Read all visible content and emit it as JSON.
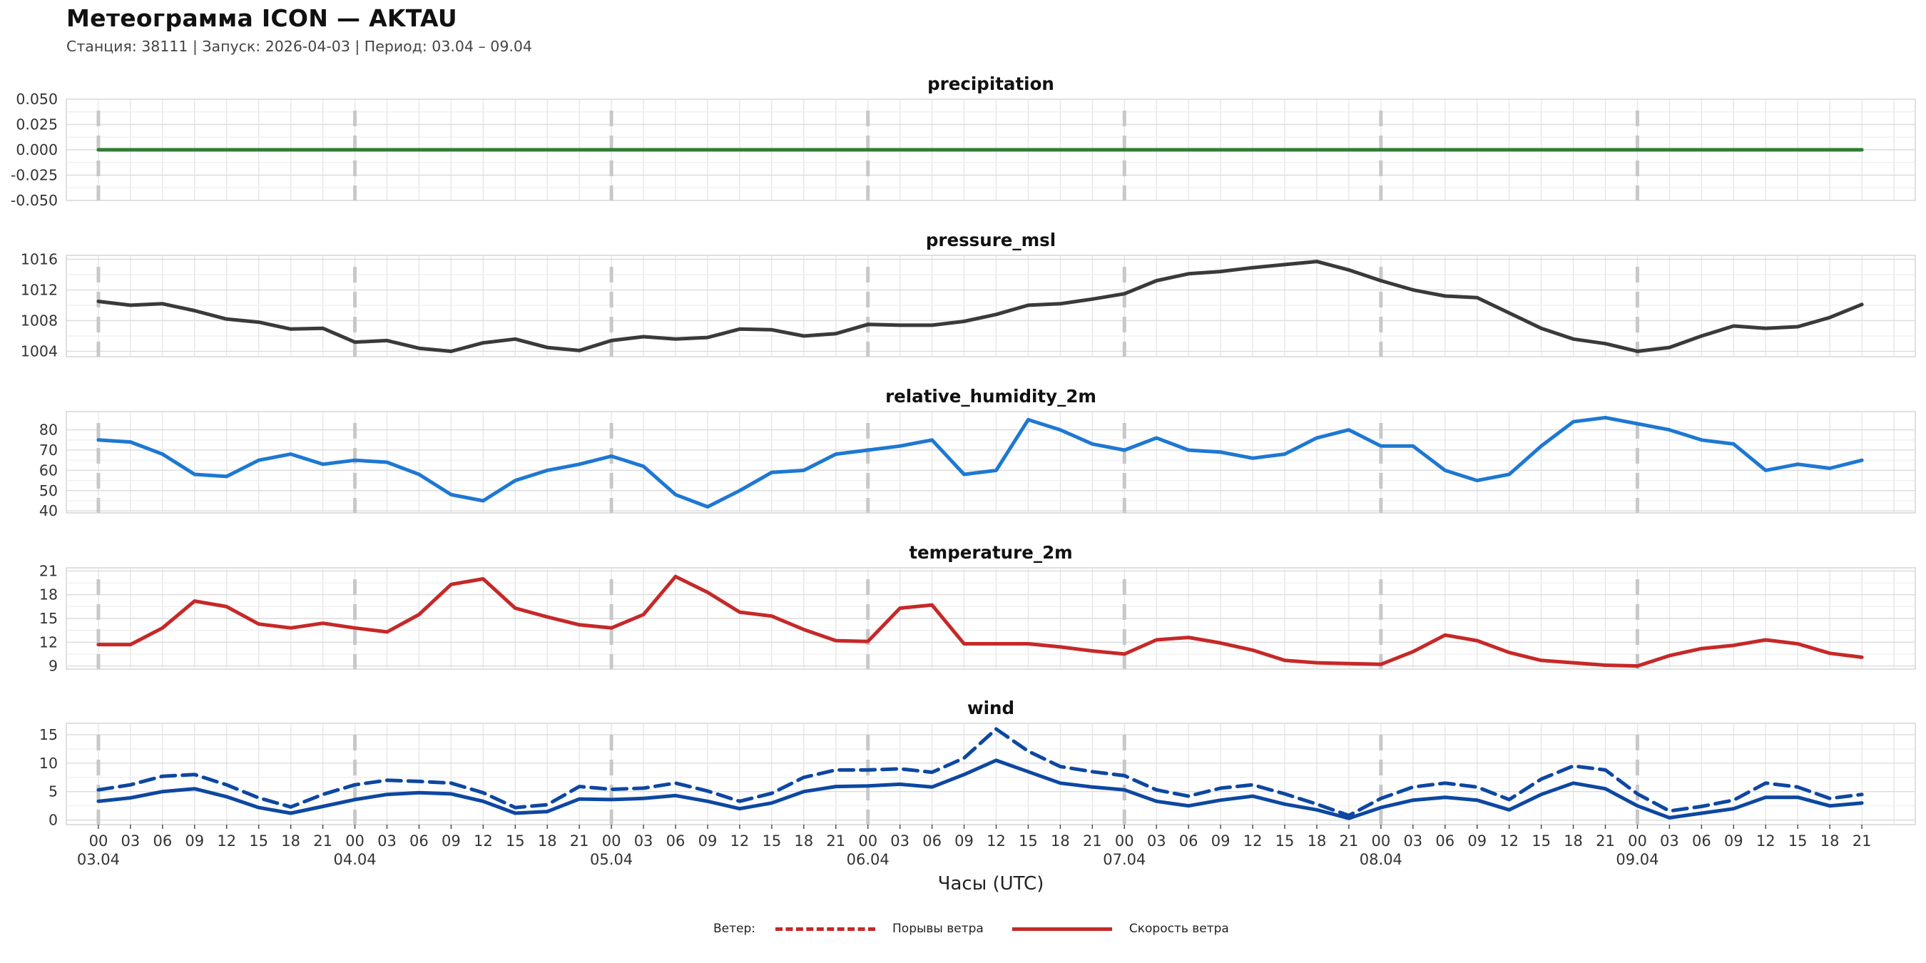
{
  "title": "Метеограмма ICON — AKTAU",
  "subtitle": "Станция: 38111  | Запуск: 2026-04-03  | Период: 03.04 – 09.04",
  "xlabel": "Часы (UTC)",
  "legend": {
    "title": "Ветер:",
    "gust": "Порывы ветра",
    "speed": "Скорость ветра",
    "color": "#c62828"
  },
  "chart_data": {
    "type": "line",
    "x_step_hours": 3,
    "x_range_hours": [
      -3,
      170
    ],
    "hour_ticks": [
      "00",
      "03",
      "06",
      "09",
      "12",
      "15",
      "18",
      "21",
      "00",
      "03",
      "06",
      "09",
      "12",
      "15",
      "18",
      "21",
      "00",
      "03",
      "06",
      "09",
      "12",
      "15",
      "18",
      "21",
      "00",
      "03",
      "06",
      "09",
      "12",
      "15",
      "18",
      "21",
      "00",
      "03",
      "06",
      "09",
      "12",
      "15",
      "18",
      "21",
      "00",
      "03",
      "06",
      "09",
      "12",
      "15",
      "18",
      "21",
      "00",
      "03",
      "06",
      "09",
      "12",
      "15",
      "18",
      "21"
    ],
    "dates": [
      "03.04",
      "04.04",
      "05.04",
      "06.04",
      "07.04",
      "08.04",
      "09.04"
    ],
    "panels": [
      {
        "title": "precipitation",
        "color": "#2e7d32",
        "ylim": [
          -0.05,
          0.05
        ],
        "yticks": [
          "0.050",
          "0.025",
          "0.000",
          "-0.025",
          "-0.050"
        ],
        "series": [
          {
            "name": "precipitation",
            "style": "solid",
            "values": [
              0,
              0,
              0,
              0,
              0,
              0,
              0,
              0,
              0,
              0,
              0,
              0,
              0,
              0,
              0,
              0,
              0,
              0,
              0,
              0,
              0,
              0,
              0,
              0,
              0,
              0,
              0,
              0,
              0,
              0,
              0,
              0,
              0,
              0,
              0,
              0,
              0,
              0,
              0,
              0,
              0,
              0,
              0,
              0,
              0,
              0,
              0,
              0,
              0,
              0,
              0,
              0,
              0,
              0,
              0,
              0
            ]
          }
        ]
      },
      {
        "title": "pressure_msl",
        "color": "#3a3a3a",
        "ylim": [
          1003.3,
          1016.5
        ],
        "yticks": [
          "1016",
          "1012",
          "1008",
          "1004"
        ],
        "series": [
          {
            "name": "pressure_msl",
            "style": "solid",
            "values": [
              1010.5,
              1010.0,
              1010.2,
              1009.3,
              1008.2,
              1007.8,
              1006.9,
              1007.0,
              1005.2,
              1005.4,
              1004.4,
              1004.0,
              1005.1,
              1005.6,
              1004.5,
              1004.1,
              1005.4,
              1005.9,
              1005.6,
              1005.8,
              1006.9,
              1006.8,
              1006.0,
              1006.3,
              1007.5,
              1007.4,
              1007.4,
              1007.9,
              1008.8,
              1010.0,
              1010.2,
              1010.8,
              1011.5,
              1013.2,
              1014.1,
              1014.4,
              1014.9,
              1015.3,
              1015.7,
              1014.6,
              1013.2,
              1012.0,
              1011.2,
              1011.0,
              1009.0,
              1007.0,
              1005.6,
              1005.0,
              1004.0,
              1004.5,
              1006.0,
              1007.3,
              1007.0,
              1007.2,
              1008.4,
              1010.1
            ]
          }
        ]
      },
      {
        "title": "relative_humidity_2m",
        "color": "#1e78d2",
        "ylim": [
          39,
          89
        ],
        "yticks": [
          "80",
          "70",
          "60",
          "50",
          "40"
        ],
        "series": [
          {
            "name": "relative_humidity_2m",
            "style": "solid",
            "values": [
              75,
              74,
              68,
              58,
              57,
              65,
              68,
              63,
              65,
              64,
              58,
              48,
              45,
              55,
              60,
              63,
              67,
              62,
              48,
              42,
              50,
              59,
              60,
              68,
              70,
              72,
              75,
              58,
              60,
              85,
              80,
              73,
              70,
              76,
              70,
              69,
              66,
              68,
              76,
              80,
              72,
              72,
              60,
              55,
              58,
              72,
              84,
              86,
              83,
              80,
              75,
              73,
              60,
              63,
              61,
              65
            ]
          }
        ]
      },
      {
        "title": "temperature_2m",
        "color": "#c62828",
        "ylim": [
          8.6,
          21.4
        ],
        "yticks": [
          "21",
          "18",
          "15",
          "12",
          "9"
        ],
        "series": [
          {
            "name": "temperature_2m",
            "style": "solid",
            "values": [
              11.7,
              11.7,
              13.8,
              17.2,
              16.5,
              14.3,
              13.8,
              14.4,
              13.8,
              13.3,
              15.5,
              19.3,
              20.0,
              16.3,
              15.2,
              14.2,
              13.8,
              15.5,
              20.3,
              18.3,
              15.8,
              15.3,
              13.6,
              12.2,
              12.1,
              16.3,
              16.7,
              11.8,
              11.8,
              11.8,
              11.4,
              10.9,
              10.5,
              12.3,
              12.6,
              11.9,
              11.0,
              9.7,
              9.4,
              9.3,
              9.2,
              10.8,
              12.9,
              12.2,
              10.7,
              9.7,
              9.4,
              9.1,
              9.0,
              10.3,
              11.2,
              11.6,
              12.3,
              11.8,
              10.6,
              10.1
            ]
          }
        ]
      },
      {
        "title": "wind",
        "color": "#0d47a1",
        "ylim": [
          -0.8,
          17
        ],
        "yticks": [
          "15",
          "10",
          "5",
          "0"
        ],
        "series": [
          {
            "name": "speed",
            "style": "solid",
            "values": [
              3.3,
              3.9,
              5.0,
              5.5,
              4.1,
              2.2,
              1.2,
              2.4,
              3.6,
              4.5,
              4.8,
              4.6,
              3.3,
              1.2,
              1.5,
              3.7,
              3.6,
              3.8,
              4.3,
              3.3,
              2.0,
              3.0,
              5.0,
              5.9,
              6.0,
              6.3,
              5.8,
              8.0,
              10.5,
              8.5,
              6.5,
              5.8,
              5.3,
              3.3,
              2.5,
              3.5,
              4.2,
              2.8,
              1.8,
              0.3,
              2.2,
              3.5,
              4.0,
              3.5,
              1.8,
              4.5,
              6.5,
              5.5,
              2.5,
              0.4,
              1.2,
              2.0,
              4.0,
              4.0,
              2.5,
              3.0
            ]
          },
          {
            "name": "gust",
            "style": "dashed",
            "values": [
              5.3,
              6.2,
              7.7,
              8.0,
              6.2,
              3.9,
              2.3,
              4.5,
              6.2,
              7.0,
              6.8,
              6.5,
              4.8,
              2.2,
              2.7,
              5.9,
              5.4,
              5.6,
              6.5,
              5.1,
              3.3,
              4.7,
              7.5,
              8.8,
              8.8,
              9.0,
              8.4,
              10.9,
              16.0,
              12.1,
              9.4,
              8.5,
              7.8,
              5.3,
              4.2,
              5.6,
              6.2,
              4.6,
              2.8,
              0.8,
              3.8,
              5.8,
              6.5,
              5.8,
              3.6,
              7.2,
              9.5,
              8.8,
              4.6,
              1.6,
              2.4,
              3.5,
              6.5,
              5.8,
              3.8,
              4.5
            ]
          }
        ]
      }
    ]
  }
}
